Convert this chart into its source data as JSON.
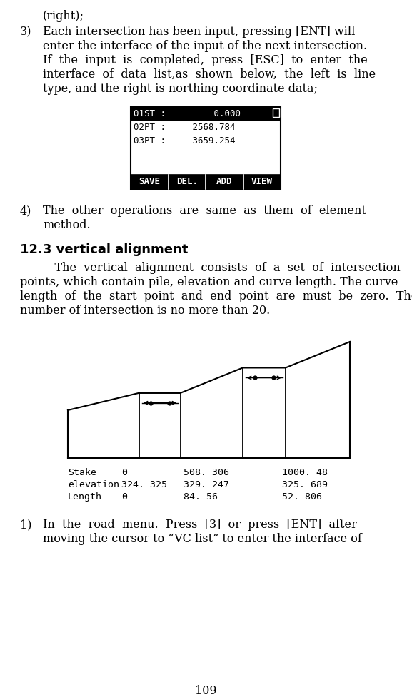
{
  "page_number": "109",
  "bg_color": "#ffffff",
  "line1": "(right);",
  "item3_num": "3)",
  "item3_text": [
    "Each intersection has been input, pressing [ENT] will",
    "enter the interface of the input of the next intersection.",
    "If  the  input  is  completed,  press  [ESC]  to  enter  the",
    "interface  of  data  list,as  shown  below,  the  left  is  line",
    "type, and the right is northing coordinate data;"
  ],
  "lcd_row1": "01ST :         0.000",
  "lcd_row2": "02PT :     2568.784",
  "lcd_row3": "03PT :     3659.254",
  "lcd_buttons": [
    "SAVE",
    "DEL.",
    "ADD",
    "VIEW"
  ],
  "item4_num": "4)",
  "item4_text": [
    "The  other  operations  are  same  as  them  of  element",
    "method."
  ],
  "heading": "12.3 vertical alignment",
  "para_indent": "    The  vertical  alignment  consists  of  a  set  of  intersection",
  "para_lines": [
    "points, which contain pile, elevation and curve length. The curve",
    "length  of  the  start  point  and  end  point  are  must  be  zero.  The",
    "number of intersection is no more than 20."
  ],
  "tbl_row1": [
    "Stake",
    "0",
    "508. 306",
    "1000. 48"
  ],
  "tbl_row2": [
    "elevation",
    "324. 325",
    "329. 247",
    "325. 689"
  ],
  "tbl_row3": [
    "Length",
    "0",
    "84. 56",
    "52. 806"
  ],
  "item1_num": "1)",
  "item1_text": [
    "In  the  road  menu.  Press  [3]  or  press  [ENT]  after",
    "moving the cursor to “VC list” to enter the interface of"
  ]
}
